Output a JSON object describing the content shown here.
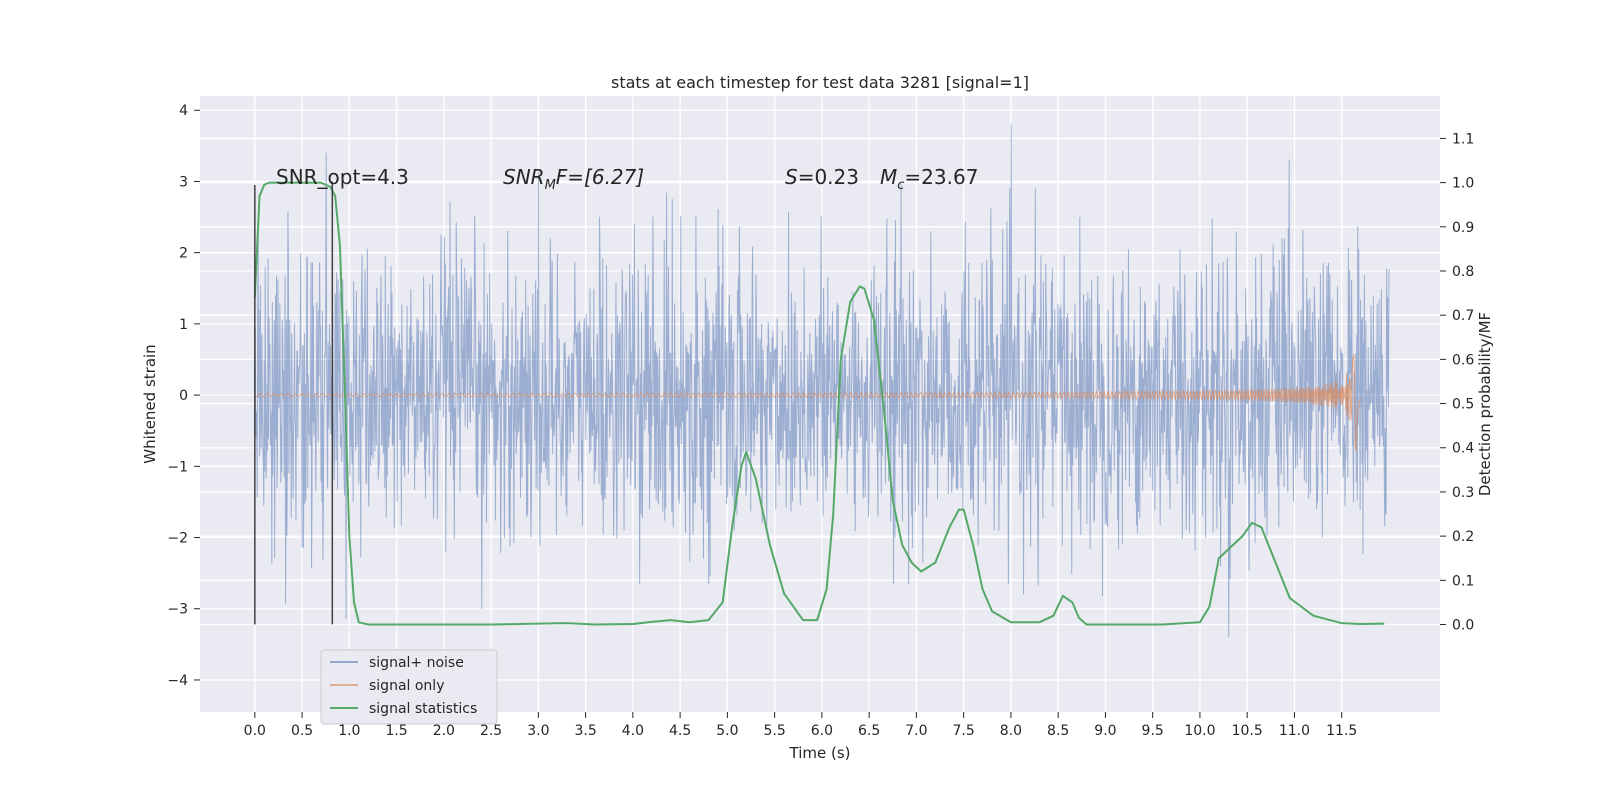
{
  "chart_data": {
    "type": "line",
    "title": "stats at each timestep for test data 3281 [signal=1]",
    "xlabel": "Time (s)",
    "ylabel": "Whitened strain",
    "ylabel_right": "Detection probability/MF",
    "xlim": [
      -0.58,
      12.54
    ],
    "ylim": [
      -4.45,
      4.2
    ],
    "ylim_right": [
      -0.198,
      1.196
    ],
    "x_ticks": [
      "0.0",
      "0.5",
      "1.0",
      "1.5",
      "2.0",
      "2.5",
      "3.0",
      "3.5",
      "4.0",
      "4.5",
      "5.0",
      "5.5",
      "6.0",
      "6.5",
      "7.0",
      "7.5",
      "8.0",
      "8.5",
      "9.0",
      "9.5",
      "10.0",
      "10.5",
      "11.0",
      "11.5"
    ],
    "y_ticks": [
      "−4",
      "−3",
      "−2",
      "−1",
      "0",
      "1",
      "2",
      "3",
      "4"
    ],
    "y_ticks_right": [
      "0.0",
      "0.1",
      "0.2",
      "0.3",
      "0.4",
      "0.5",
      "0.6",
      "0.7",
      "0.8",
      "0.9",
      "1.0",
      "1.1"
    ],
    "grid": true,
    "legend_position": "lower-left",
    "annotations": {
      "snr_opt": "SNR_opt=4.3",
      "snr_mf_base": "SNR",
      "snr_mf_sub": "M",
      "snr_mf_rest": "F=[6.27]",
      "s_base": "S",
      "s_rest": "=0.23",
      "mc_base": "M",
      "mc_sub": "c",
      "mc_rest": "=23.67"
    },
    "series": [
      {
        "name": "signal+ noise",
        "color": "#4c72b0",
        "axis": "left",
        "description_values": "whitened noise spanning roughly -3 to +3.8 across 0–12 s",
        "x_range": [
          0.0,
          12.0
        ],
        "envelope": [
          -3.4,
          3.8
        ]
      },
      {
        "name": "signal only",
        "color": "#dd8452",
        "axis": "left",
        "x_range": [
          0.0,
          11.7
        ],
        "chirp_peak_time": 11.65,
        "chirp_peak_amplitude": 0.9
      },
      {
        "name": "signal statistics",
        "color": "#55a868",
        "axis": "right",
        "x": [
          0.0,
          0.05,
          0.1,
          0.15,
          0.2,
          0.3,
          0.5,
          0.7,
          0.8,
          0.85,
          0.9,
          0.95,
          1.0,
          1.05,
          1.1,
          1.2,
          1.5,
          2.0,
          2.5,
          3.0,
          3.3,
          3.6,
          4.0,
          4.2,
          4.4,
          4.6,
          4.8,
          4.95,
          5.05,
          5.15,
          5.2,
          5.3,
          5.45,
          5.6,
          5.8,
          5.95,
          6.05,
          6.12,
          6.2,
          6.3,
          6.4,
          6.45,
          6.55,
          6.65,
          6.75,
          6.85,
          6.95,
          7.05,
          7.2,
          7.35,
          7.45,
          7.5,
          7.6,
          7.7,
          7.8,
          8.0,
          8.3,
          8.45,
          8.55,
          8.65,
          8.72,
          8.8,
          8.9,
          9.2,
          9.6,
          10.0,
          10.1,
          10.2,
          10.3,
          10.45,
          10.55,
          10.65,
          10.8,
          10.95,
          11.2,
          11.5,
          11.7,
          11.95
        ],
        "y": [
          0.74,
          0.97,
          0.995,
          1.0,
          1.0,
          1.0,
          1.0,
          1.0,
          0.99,
          0.97,
          0.86,
          0.55,
          0.2,
          0.05,
          0.005,
          0.0,
          0.0,
          0.0,
          0.0,
          0.002,
          0.003,
          0.0,
          0.001,
          0.006,
          0.01,
          0.005,
          0.01,
          0.05,
          0.22,
          0.36,
          0.39,
          0.33,
          0.18,
          0.07,
          0.01,
          0.01,
          0.08,
          0.25,
          0.6,
          0.73,
          0.765,
          0.76,
          0.69,
          0.5,
          0.28,
          0.18,
          0.14,
          0.12,
          0.14,
          0.22,
          0.26,
          0.26,
          0.18,
          0.08,
          0.03,
          0.005,
          0.005,
          0.02,
          0.065,
          0.05,
          0.015,
          0.0,
          0.0,
          0.0,
          0.0,
          0.005,
          0.04,
          0.15,
          0.17,
          0.2,
          0.23,
          0.22,
          0.14,
          0.06,
          0.02,
          0.003,
          0.001,
          0.002
        ]
      }
    ],
    "vertical_lines": [
      {
        "x": 0.0,
        "y_top": 2.95,
        "y_bottom": -3.22,
        "color": "#404040"
      },
      {
        "x": 0.82,
        "y_top": 3.0,
        "y_bottom": -3.22,
        "color": "#404040"
      }
    ]
  }
}
